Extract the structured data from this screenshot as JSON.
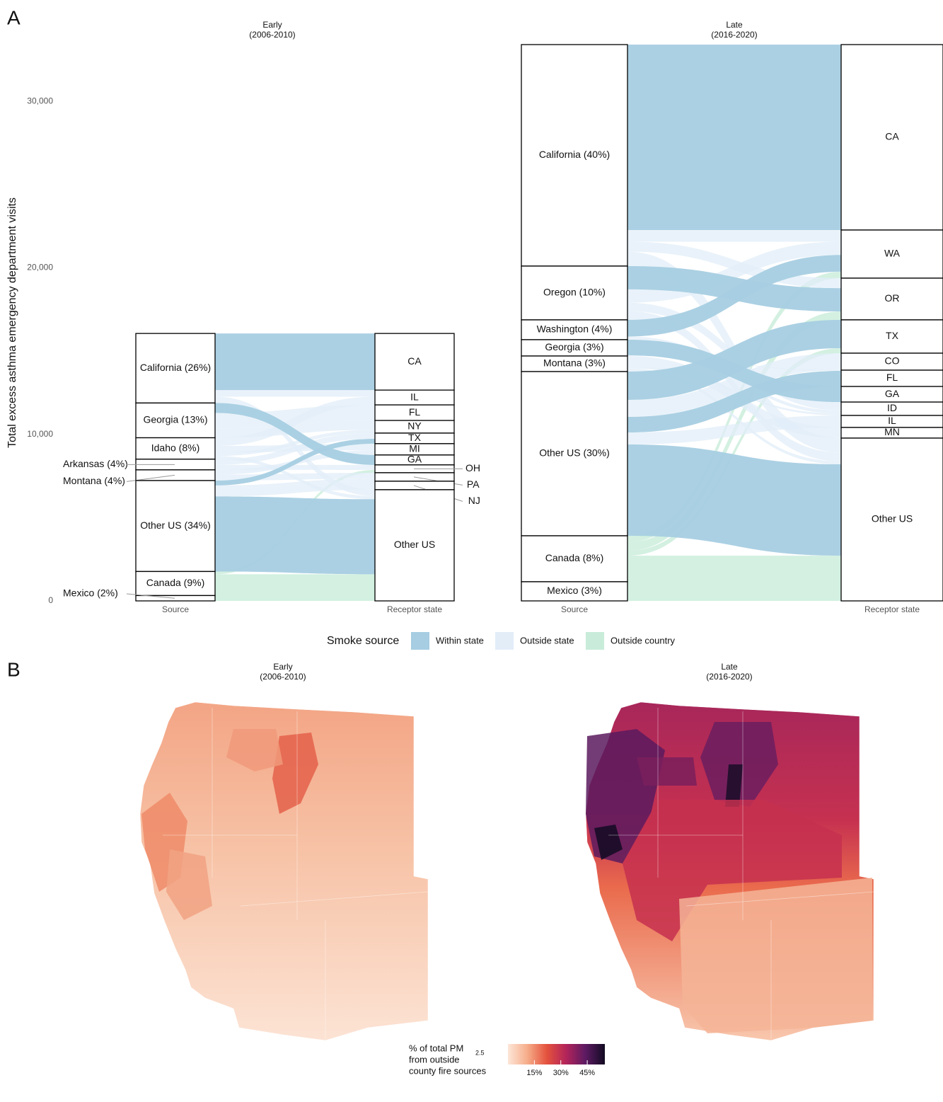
{
  "panel_labels": {
    "a": "A",
    "b": "B"
  },
  "chart_data": [
    {
      "type": "alluvial",
      "title": "Early",
      "subtitle": "(2006-2010)",
      "y_label": "Total excess asthma emergency department visits",
      "ylim": [
        0,
        33405
      ],
      "yticks": [
        0,
        {
          "value": 10000,
          "label": "10,000"
        },
        {
          "value": 20000,
          "label": "20,000"
        },
        {
          "value": 30000,
          "label": "30,000"
        }
      ],
      "axis_labels": [
        "Source",
        "Receptor state"
      ],
      "sources": [
        {
          "name": "California (26%)",
          "value": 4176,
          "flows": [
            {
              "to": "CA",
              "smoke": "Within state",
              "value": 3400
            },
            {
              "to": "IL",
              "smoke": "Outside state",
              "value": 400
            },
            {
              "to": "Other US",
              "smoke": "Outside state",
              "value": 376
            }
          ]
        },
        {
          "name": "Georgia (13%)",
          "value": 2088,
          "flows": [
            {
              "to": "GA",
              "smoke": "Within state",
              "value": 595
            },
            {
              "to": "FL",
              "smoke": "Outside state",
              "value": 935
            },
            {
              "to": "NY",
              "smoke": "Outside state",
              "value": 558
            }
          ]
        },
        {
          "name": "Idaho (8%)",
          "value": 1285,
          "flows": [
            {
              "to": "IL",
              "smoke": "Outside state",
              "value": 490
            },
            {
              "to": "MI",
              "smoke": "Outside state",
              "value": 400
            },
            {
              "to": "NY",
              "smoke": "Outside state",
              "value": 201
            },
            {
              "to": "Other US",
              "smoke": "Outside state",
              "value": 194
            }
          ]
        },
        {
          "name": "Arkansas (4%)",
          "value": 642,
          "flows": [
            {
              "to": "TX",
              "smoke": "Outside state",
              "value": 340
            },
            {
              "to": "OH",
              "smoke": "Outside state",
              "value": 302
            }
          ]
        },
        {
          "name": "Montana (4%)",
          "value": 642,
          "flows": [
            {
              "to": "MI",
              "smoke": "Outside state",
              "value": 280
            },
            {
              "to": "PA",
              "smoke": "Outside state",
              "value": 362
            }
          ]
        },
        {
          "name": "Other US (34%)",
          "value": 5460,
          "flows": [
            {
              "to": "TX",
              "smoke": "Within state",
              "value": 294
            },
            {
              "to": "PA",
              "smoke": "Outside state",
              "value": 148
            },
            {
              "to": "NJ",
              "smoke": "Outside state",
              "value": 510
            },
            {
              "to": "Other US",
              "smoke": "Within state",
              "value": 4508
            }
          ]
        },
        {
          "name": "Canada (9%)",
          "value": 1445,
          "flows": [
            {
              "to": "OH",
              "smoke": "Outside country",
              "value": 168
            },
            {
              "to": "Other US",
              "smoke": "Outside country",
              "value": 1277
            }
          ]
        },
        {
          "name": "Mexico (2%)",
          "value": 321,
          "flows": [
            {
              "to": "Other US",
              "smoke": "Outside country",
              "value": 321
            }
          ]
        }
      ],
      "targets": [
        {
          "name": "CA",
          "value": 3400
        },
        {
          "name": "IL",
          "value": 890
        },
        {
          "name": "FL",
          "value": 935
        },
        {
          "name": "NY",
          "value": 759
        },
        {
          "name": "TX",
          "value": 634
        },
        {
          "name": "MI",
          "value": 680
        },
        {
          "name": "GA",
          "value": 595
        },
        {
          "name": "OH",
          "value": 470
        },
        {
          "name": "PA",
          "value": 510
        },
        {
          "name": "NJ",
          "value": 510
        },
        {
          "name": "Other US",
          "value": 6676
        }
      ]
    },
    {
      "type": "alluvial",
      "title": "Late",
      "subtitle": "(2016-2020)",
      "ylim": [
        0,
        33405
      ],
      "axis_labels": [
        "Source",
        "Receptor state"
      ],
      "sources": [
        {
          "name": "California (40%)",
          "value": 13300,
          "flows": [
            {
              "to": "CA",
              "smoke": "Within state",
              "value": 11135
            },
            {
              "to": "WA",
              "smoke": "Outside state",
              "value": 700
            },
            {
              "to": "OR",
              "smoke": "Outside state",
              "value": 600
            },
            {
              "to": "Other US",
              "smoke": "Outside state",
              "value": 865
            }
          ]
        },
        {
          "name": "Oregon (10%)",
          "value": 3230,
          "flows": [
            {
              "to": "OR",
              "smoke": "Within state",
              "value": 1400
            },
            {
              "to": "WA",
              "smoke": "Outside state",
              "value": 800
            },
            {
              "to": "ID",
              "smoke": "Outside state",
              "value": 500
            },
            {
              "to": "Other US",
              "smoke": "Outside state",
              "value": 530
            }
          ]
        },
        {
          "name": "Washington (4%)",
          "value": 1190,
          "flows": [
            {
              "to": "WA",
              "smoke": "Within state",
              "value": 1000
            },
            {
              "to": "ID",
              "smoke": "Outside state",
              "value": 190
            }
          ]
        },
        {
          "name": "Georgia (3%)",
          "value": 980,
          "flows": [
            {
              "to": "GA",
              "smoke": "Within state",
              "value": 935
            },
            {
              "to": "FL",
              "smoke": "Outside state",
              "value": 45
            }
          ]
        },
        {
          "name": "Montana (3%)",
          "value": 935,
          "flows": [
            {
              "to": "MN",
              "smoke": "Outside state",
              "value": 640
            },
            {
              "to": "ID",
              "smoke": "Outside state",
              "value": 115
            },
            {
              "to": "Other US",
              "smoke": "Outside state",
              "value": 180
            }
          ]
        },
        {
          "name": "Other US (30%)",
          "value": 9860,
          "flows": [
            {
              "to": "TX",
              "smoke": "Within state",
              "value": 1700
            },
            {
              "to": "CO",
              "smoke": "Outside state",
              "value": 1020
            },
            {
              "to": "FL",
              "smoke": "Within state",
              "value": 935
            },
            {
              "to": "IL",
              "smoke": "Outside state",
              "value": 720
            },
            {
              "to": "Other US",
              "smoke": "Within state",
              "value": 5485
            }
          ]
        },
        {
          "name": "Canada (8%)",
          "value": 2760,
          "flows": [
            {
              "to": "WA",
              "smoke": "Outside country",
              "value": 390
            },
            {
              "to": "OR",
              "smoke": "Outside country",
              "value": 505
            },
            {
              "to": "TX",
              "smoke": "Outside country",
              "value": 300
            },
            {
              "to": "Other US",
              "smoke": "Outside country",
              "value": 1565
            }
          ]
        },
        {
          "name": "Mexico (3%)",
          "value": 1150,
          "flows": [
            {
              "to": "Other US",
              "smoke": "Outside country",
              "value": 1150
            }
          ]
        }
      ],
      "targets": [
        {
          "name": "CA",
          "value": 11135
        },
        {
          "name": "WA",
          "value": 2890
        },
        {
          "name": "OR",
          "value": 2505
        },
        {
          "name": "TX",
          "value": 2000
        },
        {
          "name": "CO",
          "value": 1020
        },
        {
          "name": "FL",
          "value": 980
        },
        {
          "name": "GA",
          "value": 935
        },
        {
          "name": "ID",
          "value": 805
        },
        {
          "name": "IL",
          "value": 720
        },
        {
          "name": "MN",
          "value": 640
        },
        {
          "name": "Other US",
          "value": 9775
        }
      ]
    },
    {
      "type": "choropleth",
      "title": "Early",
      "subtitle": "(2006-2010)"
    },
    {
      "type": "choropleth",
      "title": "Late",
      "subtitle": "(2016-2020)"
    }
  ],
  "legend": {
    "title": "Smoke source",
    "entries": [
      {
        "name": "Within state",
        "color": "#a6cde2"
      },
      {
        "name": "Outside state",
        "color": "#e2edf8"
      },
      {
        "name": "Outside country",
        "color": "#c8ecd9"
      }
    ]
  },
  "colorbar": {
    "title": "% of total PM",
    "title_subscript": "2.5",
    "title_lines": [
      "from outside",
      "county fire sources"
    ],
    "lim": [
      0,
      55
    ],
    "ticks": [
      {
        "value": 15,
        "label": "15%"
      },
      {
        "value": 30,
        "label": "30%"
      },
      {
        "value": 45,
        "label": "45%"
      }
    ],
    "colors": [
      "#fde6d8",
      "#f6ad8a",
      "#e4523d",
      "#b3245a",
      "#5c1a62",
      "#120b22"
    ]
  }
}
